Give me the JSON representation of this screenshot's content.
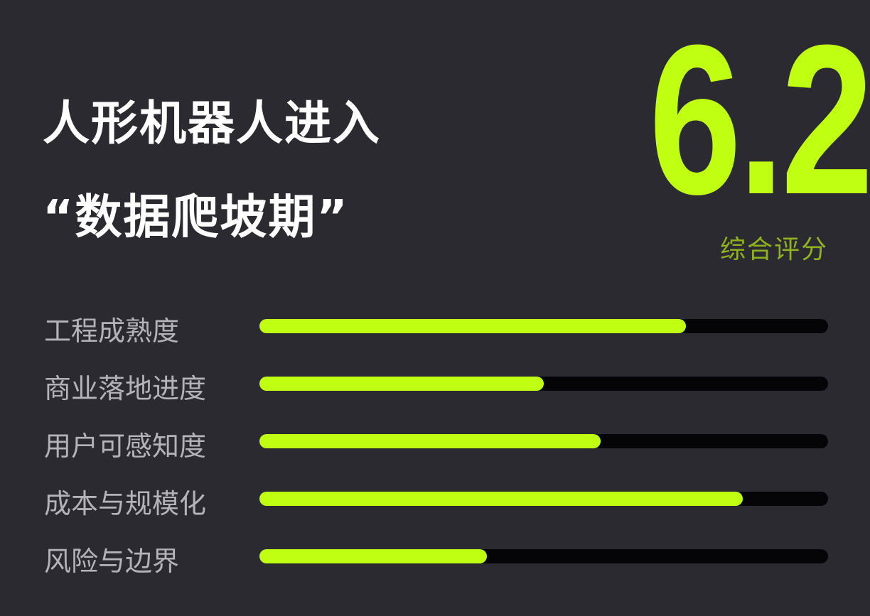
{
  "title": {
    "line1": "人形机器人进入",
    "line2": "“数据爬坡期”"
  },
  "score": {
    "value": "6.2",
    "label": "综合评分"
  },
  "colors": {
    "accent": "#c0ff12",
    "background": "#2a2a30",
    "track": "#050507",
    "label": "#b3b3b8"
  },
  "chart_data": {
    "type": "bar",
    "orientation": "horizontal",
    "categories": [
      "工程成熟度",
      "商业落地进度",
      "用户可感知度",
      "成本与规模化",
      "风险与边界"
    ],
    "values": [
      7.5,
      5.0,
      6.0,
      8.5,
      4.0
    ],
    "xlim": [
      0,
      10
    ],
    "grid": false
  }
}
